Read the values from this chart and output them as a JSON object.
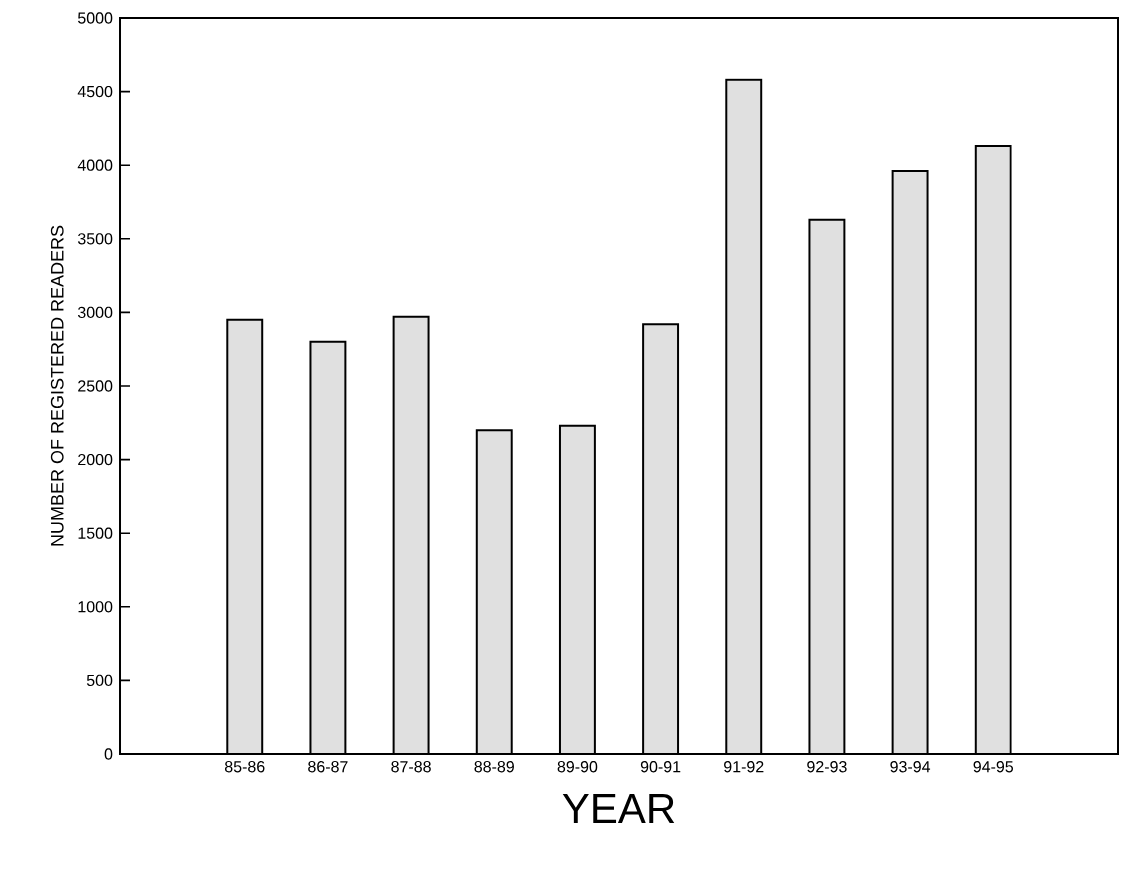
{
  "chart_data": {
    "type": "bar",
    "xlabel": "YEAR",
    "ylabel": "NUMBER OF REGISTERED READERS",
    "categories": [
      "85-86",
      "86-87",
      "87-88",
      "88-89",
      "89-90",
      "90-91",
      "91-92",
      "92-93",
      "93-94",
      "94-95"
    ],
    "values": [
      2950,
      2800,
      2970,
      2200,
      2230,
      2920,
      4580,
      3630,
      3960,
      4130
    ],
    "color": "#e0e0e0",
    "ylim": [
      0,
      5000
    ],
    "yticks": [
      0,
      500,
      1000,
      1500,
      2000,
      2500,
      3000,
      3500,
      4000,
      4500,
      5000
    ]
  }
}
